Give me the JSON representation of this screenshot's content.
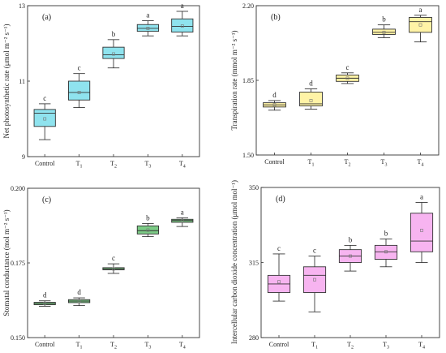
{
  "colors": {
    "frame": "#333333",
    "text": "#222222",
    "box_stroke": "#333333",
    "mean_marker": "#777777"
  },
  "chart_data": [
    {
      "type": "box",
      "panel_label": "(a)",
      "ylabel": "Net photosynthetic rate (μmol m⁻² s⁻¹)",
      "ylim": [
        9,
        13
      ],
      "yticks": [
        "9",
        "11",
        "13"
      ],
      "ytick_values": [
        9,
        11,
        13
      ],
      "categories": [
        "Control",
        "T1",
        "T2",
        "T3",
        "T4"
      ],
      "category_subscripts": [
        "",
        "1",
        "2",
        "3",
        "4"
      ],
      "category_bases": [
        "Control",
        "T",
        "T",
        "T",
        "T"
      ],
      "color": "#8fe3ee",
      "boxes": [
        {
          "min": 9.45,
          "q1": 9.8,
          "median": 10.15,
          "q3": 10.25,
          "max": 10.4,
          "mean": 10.0,
          "letter": "c"
        },
        {
          "min": 10.3,
          "q1": 10.5,
          "median": 10.7,
          "q3": 11.0,
          "max": 11.2,
          "mean": 10.7,
          "letter": "c"
        },
        {
          "min": 11.35,
          "q1": 11.6,
          "median": 11.7,
          "q3": 11.9,
          "max": 12.1,
          "mean": 11.72,
          "letter": "b"
        },
        {
          "min": 12.2,
          "q1": 12.32,
          "median": 12.4,
          "q3": 12.5,
          "max": 12.6,
          "mean": 12.4,
          "letter": "a"
        },
        {
          "min": 12.2,
          "q1": 12.3,
          "median": 12.45,
          "q3": 12.65,
          "max": 12.85,
          "mean": 12.46,
          "letter": "a"
        }
      ]
    },
    {
      "type": "box",
      "panel_label": "(b)",
      "ylabel": "Transpiration rate (mmol m⁻² s⁻¹)",
      "ylim": [
        1.5,
        2.2
      ],
      "yticks": [
        "1.50",
        "1.85",
        "2.20"
      ],
      "ytick_values": [
        1.5,
        1.85,
        2.2
      ],
      "categories": [
        "Control",
        "T1",
        "T2",
        "T3",
        "T4"
      ],
      "category_subscripts": [
        "",
        "1",
        "2",
        "3",
        "4"
      ],
      "category_bases": [
        "Control",
        "T",
        "T",
        "T",
        "T"
      ],
      "color": "#fff3a6",
      "boxes": [
        {
          "min": 1.71,
          "q1": 1.725,
          "median": 1.735,
          "q3": 1.745,
          "max": 1.755,
          "mean": 1.735,
          "letter": "d"
        },
        {
          "min": 1.715,
          "q1": 1.73,
          "median": 1.74,
          "q3": 1.795,
          "max": 1.81,
          "mean": 1.755,
          "letter": "d"
        },
        {
          "min": 1.835,
          "q1": 1.845,
          "median": 1.86,
          "q3": 1.875,
          "max": 1.885,
          "mean": 1.86,
          "letter": "c"
        },
        {
          "min": 2.05,
          "q1": 2.065,
          "median": 2.075,
          "q3": 2.09,
          "max": 2.11,
          "mean": 2.075,
          "letter": "b"
        },
        {
          "min": 2.03,
          "q1": 2.075,
          "median": 2.125,
          "q3": 2.145,
          "max": 2.155,
          "mean": 2.11,
          "letter": "a"
        }
      ]
    },
    {
      "type": "box",
      "panel_label": "(c)",
      "ylabel": "Stomatal conductance (mol m⁻² s⁻¹)",
      "ylim": [
        0.15,
        0.2
      ],
      "yticks": [
        "0.150",
        "0.175",
        "0.200"
      ],
      "ytick_values": [
        0.15,
        0.175,
        0.2
      ],
      "categories": [
        "Control",
        "T1",
        "T2",
        "T3",
        "T4"
      ],
      "category_subscripts": [
        "",
        "1",
        "2",
        "3",
        "4"
      ],
      "category_bases": [
        "Control",
        "T",
        "T",
        "T",
        "T"
      ],
      "color": "#7ccc86",
      "boxes": [
        {
          "min": 0.1605,
          "q1": 0.161,
          "median": 0.1614,
          "q3": 0.1618,
          "max": 0.1623,
          "mean": 0.1614,
          "letter": "d"
        },
        {
          "min": 0.1607,
          "q1": 0.1617,
          "median": 0.1622,
          "q3": 0.1627,
          "max": 0.1633,
          "mean": 0.1622,
          "letter": "d"
        },
        {
          "min": 0.1715,
          "q1": 0.1727,
          "median": 0.173,
          "q3": 0.1734,
          "max": 0.1747,
          "mean": 0.173,
          "letter": "c"
        },
        {
          "min": 0.1838,
          "q1": 0.1847,
          "median": 0.1858,
          "q3": 0.1874,
          "max": 0.1882,
          "mean": 0.186,
          "letter": "b"
        },
        {
          "min": 0.1872,
          "q1": 0.1886,
          "median": 0.1892,
          "q3": 0.1896,
          "max": 0.1901,
          "mean": 0.1891,
          "letter": "a"
        }
      ]
    },
    {
      "type": "box",
      "panel_label": "(d)",
      "ylabel": "Intercellular carbon dioxide concentration (μmol mol⁻¹)",
      "ylim": [
        280,
        350
      ],
      "yticks": [
        "280",
        "315",
        "350"
      ],
      "ytick_values": [
        280,
        315,
        350
      ],
      "categories": [
        "Control",
        "T1",
        "T2",
        "T3",
        "T4"
      ],
      "category_subscripts": [
        "",
        "1",
        "2",
        "3",
        "4"
      ],
      "category_bases": [
        "Control",
        "T",
        "T",
        "T",
        "T"
      ],
      "color": "#f7b4f0",
      "boxes": [
        {
          "min": 297,
          "q1": 301,
          "median": 305,
          "q3": 309,
          "max": 319,
          "mean": 306,
          "letter": "c"
        },
        {
          "min": 292,
          "q1": 301,
          "median": 309,
          "q3": 313,
          "max": 318,
          "mean": 307,
          "letter": "c"
        },
        {
          "min": 311,
          "q1": 315,
          "median": 318,
          "q3": 321,
          "max": 323,
          "mean": 318,
          "letter": "b"
        },
        {
          "min": 313,
          "q1": 316.5,
          "median": 320,
          "q3": 323,
          "max": 326,
          "mean": 320,
          "letter": "b"
        },
        {
          "min": 315,
          "q1": 320,
          "median": 325,
          "q3": 338,
          "max": 343,
          "mean": 330,
          "letter": "a"
        }
      ]
    }
  ]
}
